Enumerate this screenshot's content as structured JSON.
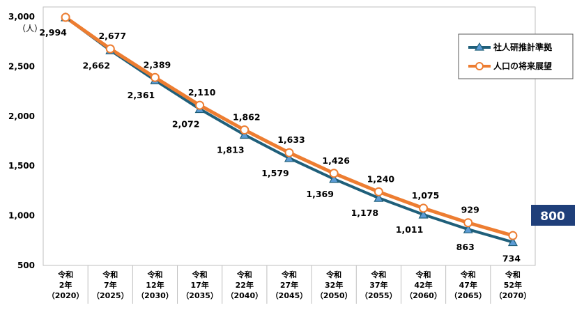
{
  "chart_data": {
    "type": "line",
    "unit": "（人）",
    "categories": [
      [
        "令和",
        "2年",
        "（2020）"
      ],
      [
        "令和",
        "7年",
        "（2025）"
      ],
      [
        "令和",
        "12年",
        "（2030）"
      ],
      [
        "令和",
        "17年",
        "（2035）"
      ],
      [
        "令和",
        "22年",
        "（2040）"
      ],
      [
        "令和",
        "27年",
        "（2045）"
      ],
      [
        "令和",
        "32年",
        "（2050）"
      ],
      [
        "令和",
        "37年",
        "（2055）"
      ],
      [
        "令和",
        "42年",
        "（2060）"
      ],
      [
        "令和",
        "47年",
        "（2065）"
      ],
      [
        "令和",
        "52年",
        "（2070）"
      ]
    ],
    "yticks": [
      "3,000",
      "2,500",
      "2,000",
      "1,500",
      "1,000",
      "500"
    ],
    "ylim": [
      500,
      3000
    ],
    "grid": false,
    "legend_position": "top-right",
    "series": [
      {
        "name": "社人研推計準拠",
        "color": "#1f5f7a",
        "marker": "triangle",
        "values": [
          2994,
          2662,
          2361,
          2072,
          1813,
          1579,
          1369,
          1178,
          1011,
          863,
          734
        ],
        "labels": [
          "",
          "2,662",
          "2,361",
          "2,072",
          "1,813",
          "1,579",
          "1,369",
          "1,178",
          "1,011",
          "863",
          "734"
        ]
      },
      {
        "name": "人口の将来展望",
        "color": "#ed7d31",
        "marker": "circle",
        "values": [
          2994,
          2677,
          2389,
          2110,
          1862,
          1633,
          1426,
          1240,
          1075,
          929,
          800
        ],
        "labels": [
          "2,994",
          "2,677",
          "2,389",
          "2,110",
          "1,862",
          "1,633",
          "1,426",
          "1,240",
          "1,075",
          "929",
          ""
        ]
      }
    ],
    "highlight": {
      "text": "800",
      "background": "#1f3f7a"
    }
  }
}
